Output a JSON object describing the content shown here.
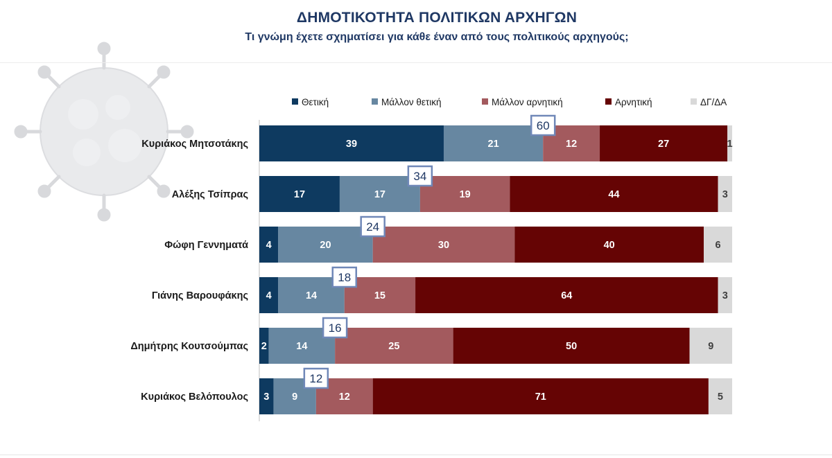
{
  "title": "ΔΗΜΟΤΙΚΟΤΗΤΑ ΠΟΛΙΤΙΚΩΝ ΑΡΧΗΓΩΝ",
  "subtitle": "Τι γνώμη έχετε σχηματίσει για κάθε έναν από τους πολιτικούς αρχηγούς;",
  "chart_data": {
    "type": "bar",
    "orientation": "horizontal",
    "stacked": true,
    "normalized_percent": true,
    "legend_position": "top",
    "categories": [
      "Κυριάκος Μητσοτάκης",
      "Αλέξης Τσίπρας",
      "Φώφη Γεννηματά",
      "Γιάνης Βαρουφάκης",
      "Δημήτρης Κουτσούμπας",
      "Κυριάκος Βελόπουλος"
    ],
    "series": [
      {
        "name": "Θετική",
        "color": "#0e3a60",
        "label_color": "#ffffff",
        "values": [
          39,
          17,
          4,
          4,
          2,
          3
        ]
      },
      {
        "name": "Μάλλον θετική",
        "color": "#6787a1",
        "label_color": "#ffffff",
        "values": [
          21,
          17,
          20,
          14,
          14,
          9
        ]
      },
      {
        "name": "Μάλλον αρνητική",
        "color": "#a35a5e",
        "label_color": "#ffffff",
        "values": [
          12,
          19,
          30,
          15,
          25,
          12
        ]
      },
      {
        "name": "Αρνητική",
        "color": "#650404",
        "label_color": "#ffffff",
        "values": [
          27,
          44,
          40,
          64,
          50,
          71
        ]
      },
      {
        "name": "ΔΓ/ΔΑ",
        "color": "#d9d9d9",
        "label_color": "#404040",
        "values": [
          1,
          3,
          6,
          3,
          9,
          5
        ]
      }
    ],
    "positive_totals": [
      60,
      34,
      24,
      18,
      16,
      12
    ],
    "total_callout_border": "#7088b8"
  }
}
